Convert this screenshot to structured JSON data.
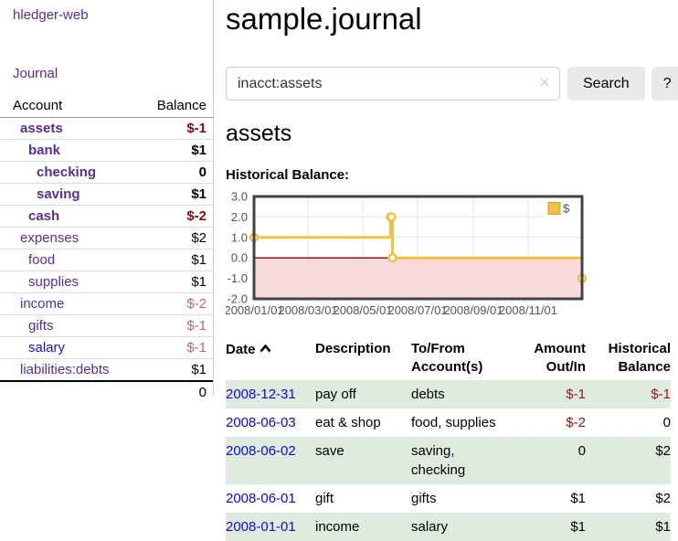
{
  "theme": {
    "link_visited_purple": "#5b2d91",
    "link_blue": "#0b0bd2",
    "negative_red_strong": "#7c1013",
    "negative_red_soft": "#b4686c",
    "register_negative_red": "#8f1d21",
    "row_shade_green": "#e0ebe0",
    "button_gray": "#e9e9e9"
  },
  "sidebar": {
    "brand": "hledger-web",
    "nav_journal": "Journal",
    "accounts": {
      "col_account": "Account",
      "col_balance": "Balance",
      "rows": [
        {
          "name": "assets",
          "indent": 1,
          "bold": true,
          "balance": "$-1",
          "visited": true
        },
        {
          "name": "bank",
          "indent": 2,
          "bold": true,
          "balance": "$1",
          "visited": true
        },
        {
          "name": "checking",
          "indent": 3,
          "bold": true,
          "balance": "0",
          "visited": true
        },
        {
          "name": "saving",
          "indent": 3,
          "bold": true,
          "balance": "$1",
          "visited": true
        },
        {
          "name": "cash",
          "indent": 2,
          "bold": true,
          "balance": "$-2",
          "visited": true
        },
        {
          "name": "expenses",
          "indent": 1,
          "bold": false,
          "balance": "$2",
          "visited": true
        },
        {
          "name": "food",
          "indent": 2,
          "bold": false,
          "balance": "$1",
          "visited": true
        },
        {
          "name": "supplies",
          "indent": 2,
          "bold": false,
          "balance": "$1",
          "visited": true
        },
        {
          "name": "income",
          "indent": 1,
          "bold": false,
          "balance": "$-2",
          "visited": true
        },
        {
          "name": "gifts",
          "indent": 2,
          "bold": false,
          "balance": "$-1",
          "visited": true
        },
        {
          "name": "salary",
          "indent": 2,
          "bold": false,
          "balance": "$-1",
          "visited": false
        },
        {
          "name": "liabilities:debts",
          "indent": 1,
          "bold": false,
          "balance": "$1",
          "visited": true
        }
      ],
      "total": "0"
    }
  },
  "header": {
    "title": "sample.journal"
  },
  "search": {
    "value": "inacct:assets",
    "clear_icon": "✕",
    "button_label": "Search",
    "help_label": "?"
  },
  "account_page": {
    "title": "assets",
    "chart_label": "Historical Balance:"
  },
  "chart_data": {
    "type": "line",
    "step": true,
    "title": "Historical Balance:",
    "series": [
      {
        "name": "$",
        "color": "#edc240",
        "points": [
          [
            "2008-01-01",
            1
          ],
          [
            "2008-06-01",
            2
          ],
          [
            "2008-06-02",
            2
          ],
          [
            "2008-06-03",
            0
          ],
          [
            "2008-12-31",
            -1
          ]
        ]
      }
    ],
    "x_range": [
      "2008-01-01",
      "2008-12-31"
    ],
    "x_ticks": [
      {
        "date": "2008-01-01",
        "label": "2008/01/01"
      },
      {
        "date": "2008-03-01",
        "label": "2008/03/01"
      },
      {
        "date": "2008-05-01",
        "label": "2008/05/01"
      },
      {
        "date": "2008-07-01",
        "label": "2008/07/01"
      },
      {
        "date": "2008-09-01",
        "label": "2008/09/01"
      },
      {
        "date": "2008-11-01",
        "label": "2008/11/01"
      }
    ],
    "y_ticks": [
      {
        "value": 3,
        "label": "3.0"
      },
      {
        "value": 2,
        "label": "2.0"
      },
      {
        "value": 1,
        "label": "1.0"
      },
      {
        "value": 0,
        "label": "0.0"
      },
      {
        "value": -1,
        "label": "-1.0"
      },
      {
        "value": -2,
        "label": "-2.0"
      }
    ],
    "ylim": [
      -2,
      3
    ],
    "grid": true,
    "legend": {
      "label": "$",
      "position": "top-right"
    },
    "colors": {
      "negative_region": "#f9d9d9",
      "zero_line": "#8b0000",
      "gridline": "#e3e3e3",
      "border": "#424242",
      "axis_text": "#545454"
    }
  },
  "register": {
    "headers": {
      "date": "Date",
      "description": "Description",
      "accounts": "To/From Account(s)",
      "amount": "Amount Out/In",
      "balance": "Historical Balance"
    },
    "rows": [
      {
        "date": "2008-12-31",
        "description": "pay off",
        "accounts": "debts",
        "amount": "$-1",
        "balance": "$-1",
        "shaded": true
      },
      {
        "date": "2008-06-03",
        "description": "eat & shop",
        "accounts": "food, supplies",
        "amount": "$-2",
        "balance": "0",
        "shaded": false
      },
      {
        "date": "2008-06-02",
        "description": "save",
        "accounts": "saving, checking",
        "amount": "0",
        "balance": "$2",
        "shaded": true
      },
      {
        "date": "2008-06-01",
        "description": "gift",
        "accounts": "gifts",
        "amount": "$1",
        "balance": "$2",
        "shaded": false
      },
      {
        "date": "2008-01-01",
        "description": "income",
        "accounts": "salary",
        "amount": "$1",
        "balance": "$1",
        "shaded": true
      }
    ]
  }
}
